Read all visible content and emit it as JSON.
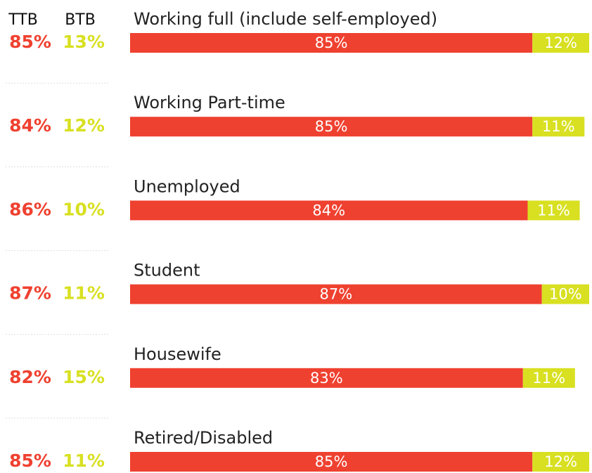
{
  "chart_data": {
    "type": "bar",
    "orientation": "horizontal",
    "stacked": true,
    "categories": [
      "Working full (include self-employed)",
      "Working Part-time",
      "Unemployed",
      "Student",
      "Housewife",
      "Retired/Disabled"
    ],
    "series": [
      {
        "color": "#ef4130",
        "values": [
          85,
          85,
          84,
          87,
          83,
          85
        ],
        "value_labels": [
          "85%",
          "85%",
          "84%",
          "87%",
          "83%",
          "85%"
        ]
      },
      {
        "color": "#d8e021",
        "values": [
          12,
          11,
          11,
          10,
          11,
          12
        ],
        "value_labels": [
          "12%",
          "11%",
          "11%",
          "10%",
          "11%",
          "12%"
        ]
      }
    ],
    "columns": [
      {
        "header": "TTB",
        "color": "#ef4130",
        "values": [
          85,
          84,
          86,
          87,
          82,
          85
        ],
        "value_labels": [
          "85%",
          "84%",
          "86%",
          "87%",
          "82%",
          "85%"
        ]
      },
      {
        "header": "BTB",
        "color": "#d8e021",
        "values": [
          13,
          12,
          10,
          11,
          15,
          11
        ],
        "value_labels": [
          "13%",
          "12%",
          "10%",
          "11%",
          "15%",
          "11%"
        ]
      }
    ]
  }
}
